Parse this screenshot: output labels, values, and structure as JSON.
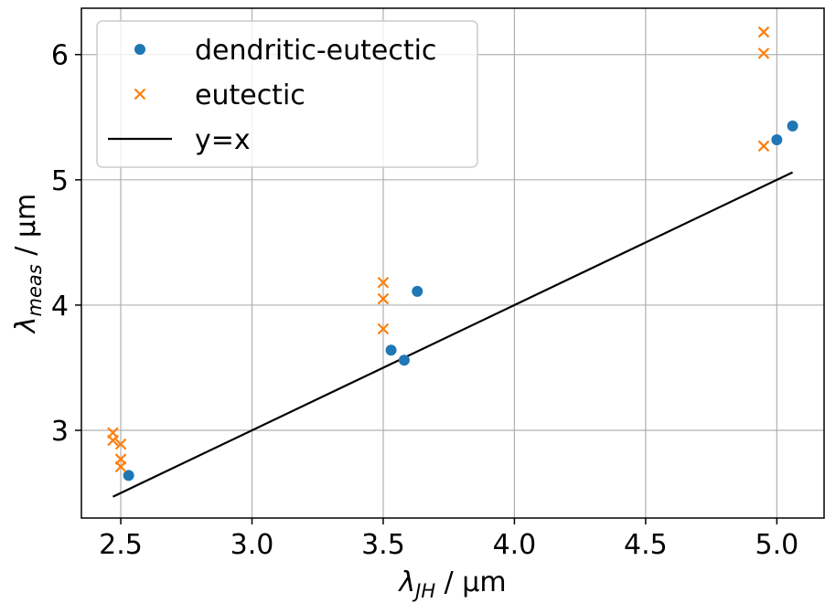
{
  "chart_data": {
    "type": "scatter",
    "xlabel": {
      "symbol": "λ",
      "sub": "JH",
      "unit": " / µm"
    },
    "ylabel": {
      "symbol": "λ",
      "sub": "meas",
      "unit": " / µm"
    },
    "xlim": [
      2.35,
      5.18
    ],
    "ylim": [
      2.3,
      6.37
    ],
    "xticks": [
      2.5,
      3.0,
      3.5,
      4.0,
      4.5,
      5.0
    ],
    "xtick_labels": [
      "2.5",
      "3.0",
      "3.5",
      "4.0",
      "4.5",
      "5.0"
    ],
    "yticks": [
      3,
      4,
      5,
      6
    ],
    "ytick_labels": [
      "3",
      "4",
      "5",
      "6"
    ],
    "grid": true,
    "legend_position": "top-left",
    "series": [
      {
        "name": "dendritic-eutectic",
        "marker": "circle",
        "color": "#1f77b4",
        "x": [
          2.53,
          3.53,
          3.58,
          3.63,
          5.0,
          5.06
        ],
        "y": [
          2.64,
          3.64,
          3.56,
          4.11,
          5.32,
          5.43
        ]
      },
      {
        "name": "eutectic",
        "marker": "x",
        "color": "#ff7f0e",
        "x": [
          2.47,
          2.47,
          2.5,
          2.5,
          2.5,
          3.5,
          3.5,
          3.5,
          4.95,
          4.95,
          4.95
        ],
        "y": [
          2.98,
          2.92,
          2.89,
          2.77,
          2.71,
          4.18,
          4.05,
          3.81,
          6.18,
          6.01,
          5.27
        ]
      },
      {
        "name": "y=x",
        "marker": "line",
        "color": "#000000",
        "x": [
          2.47,
          5.06
        ],
        "y": [
          2.47,
          5.06
        ]
      }
    ]
  }
}
